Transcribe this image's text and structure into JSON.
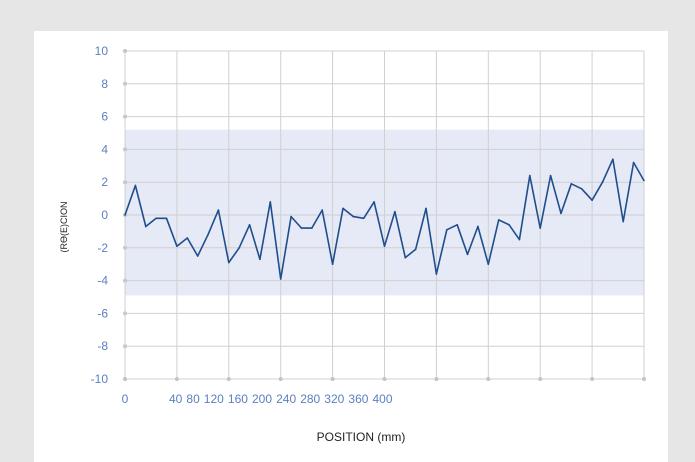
{
  "chart_data": {
    "type": "line",
    "title": "",
    "xlabel": "POSITION (mm)",
    "ylabel": "(RӨ(E)CION",
    "ylim": [
      -10,
      10
    ],
    "yticks": [
      10,
      8,
      6,
      4,
      2,
      0,
      -2,
      -4,
      -6,
      -8,
      -10
    ],
    "xtick_labels": [
      "0",
      "40",
      "80",
      "120",
      "160",
      "200",
      "240",
      "280",
      "320",
      "360",
      "400"
    ],
    "grid": true,
    "band": {
      "lower": -4.9,
      "upper": 5.2,
      "color": "#e6e9f6"
    },
    "line_color": "#1f4e8c",
    "grid_color": "#d0d0d0",
    "tick_label_color": "#5b7fc0",
    "series": [
      {
        "values": [
          0,
          1.8,
          -0.7,
          -0.2,
          -0.2,
          -1.9,
          -1.4,
          -2.5,
          -1.2,
          0.3,
          -2.9,
          -2.0,
          -0.6,
          -2.7,
          0.8,
          -3.9,
          -0.1,
          -0.8,
          -0.8,
          0.3,
          -3.0,
          0.4,
          -0.1,
          -0.2,
          0.8,
          -1.9,
          0.2,
          -2.6,
          -2.1,
          0.4,
          -3.6,
          -0.9,
          -0.6,
          -2.4,
          -0.7,
          -3.0,
          -0.3,
          -0.6,
          -1.5,
          2.4,
          -0.8,
          2.4,
          0.1,
          1.9,
          1.6,
          0.9,
          2.0,
          3.4,
          -0.4,
          3.2,
          2.1
        ]
      }
    ]
  }
}
